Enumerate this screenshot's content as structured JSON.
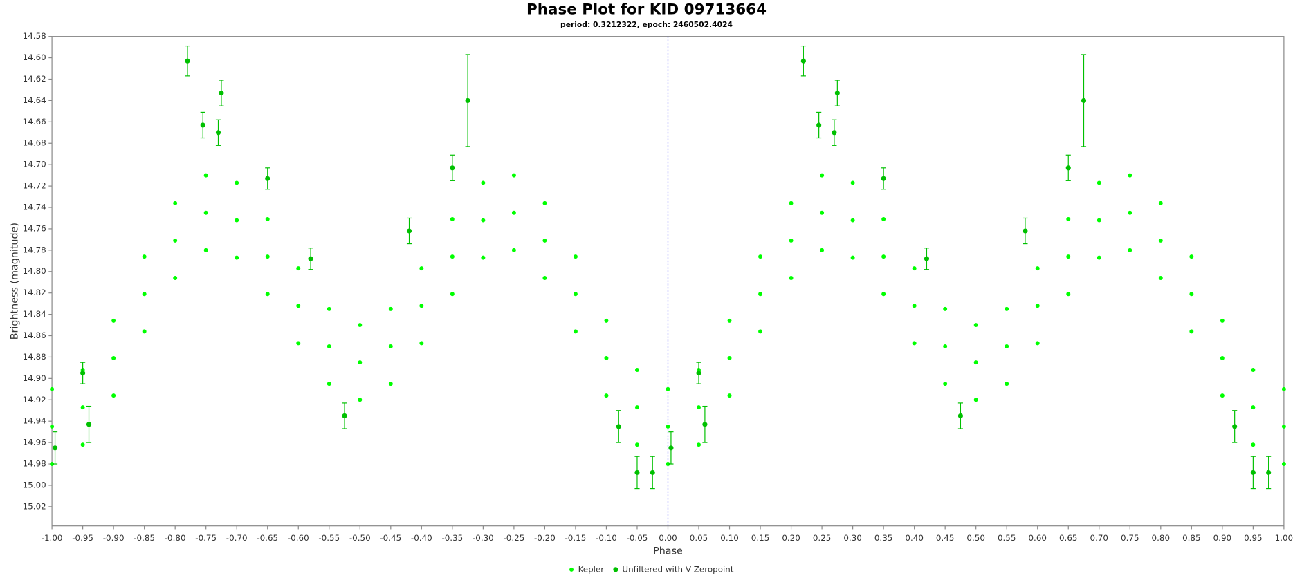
{
  "chart_data": {
    "type": "scatter",
    "title": "Phase Plot for KID 09713664",
    "subtitle": "period: 0.3212322, epoch: 2460502.4024",
    "x_label": "Phase",
    "y_label": "Brightness (magnitude)",
    "xlim": [
      -1,
      1
    ],
    "ylim": [
      14.58,
      15.038
    ],
    "y_inverted": true,
    "grid": false,
    "legend": "bottom",
    "reference_line": {
      "x": 0,
      "color": "#4444ff"
    },
    "xticks": [
      {
        "value": -1,
        "label": "-1.00"
      },
      {
        "value": -0.95,
        "label": "-0.95"
      },
      {
        "value": -0.9,
        "label": "-0.90"
      },
      {
        "value": -0.85,
        "label": "-0.85"
      },
      {
        "value": -0.8,
        "label": "-0.80"
      },
      {
        "value": -0.75,
        "label": "-0.75"
      },
      {
        "value": -0.7,
        "label": "-0.70"
      },
      {
        "value": -0.65,
        "label": "-0.65"
      },
      {
        "value": -0.6,
        "label": "-0.60"
      },
      {
        "value": -0.55,
        "label": "-0.55"
      },
      {
        "value": -0.5,
        "label": "-0.50"
      },
      {
        "value": -0.45,
        "label": "-0.45"
      },
      {
        "value": -0.4,
        "label": "-0.40"
      },
      {
        "value": -0.35,
        "label": "-0.35"
      },
      {
        "value": -0.3,
        "label": "-0.30"
      },
      {
        "value": -0.25,
        "label": "-0.25"
      },
      {
        "value": -0.2,
        "label": "-0.20"
      },
      {
        "value": -0.15,
        "label": "-0.15"
      },
      {
        "value": -0.1,
        "label": "-0.10"
      },
      {
        "value": -0.05,
        "label": "-0.05"
      },
      {
        "value": 0,
        "label": "0.00"
      },
      {
        "value": 0.05,
        "label": "0.05"
      },
      {
        "value": 0.1,
        "label": "0.10"
      },
      {
        "value": 0.15,
        "label": "0.15"
      },
      {
        "value": 0.2,
        "label": "0.20"
      },
      {
        "value": 0.25,
        "label": "0.25"
      },
      {
        "value": 0.3,
        "label": "0.30"
      },
      {
        "value": 0.35,
        "label": "0.35"
      },
      {
        "value": 0.4,
        "label": "0.40"
      },
      {
        "value": 0.45,
        "label": "0.45"
      },
      {
        "value": 0.5,
        "label": "0.50"
      },
      {
        "value": 0.55,
        "label": "0.55"
      },
      {
        "value": 0.6,
        "label": "0.60"
      },
      {
        "value": 0.65,
        "label": "0.65"
      },
      {
        "value": 0.7,
        "label": "0.70"
      },
      {
        "value": 0.75,
        "label": "0.75"
      },
      {
        "value": 0.8,
        "label": "0.80"
      },
      {
        "value": 0.85,
        "label": "0.85"
      },
      {
        "value": 0.9,
        "label": "0.90"
      },
      {
        "value": 0.95,
        "label": "0.95"
      },
      {
        "value": 1,
        "label": "1.00"
      }
    ],
    "yticks": [
      {
        "value": 14.58,
        "label": "14.58"
      },
      {
        "value": 14.6,
        "label": "14.60"
      },
      {
        "value": 14.62,
        "label": "14.62"
      },
      {
        "value": 14.64,
        "label": "14.64"
      },
      {
        "value": 14.66,
        "label": "14.66"
      },
      {
        "value": 14.68,
        "label": "14.68"
      },
      {
        "value": 14.7,
        "label": "14.70"
      },
      {
        "value": 14.72,
        "label": "14.72"
      },
      {
        "value": 14.74,
        "label": "14.74"
      },
      {
        "value": 14.76,
        "label": "14.76"
      },
      {
        "value": 14.78,
        "label": "14.78"
      },
      {
        "value": 14.8,
        "label": "14.80"
      },
      {
        "value": 14.82,
        "label": "14.82"
      },
      {
        "value": 14.84,
        "label": "14.84"
      },
      {
        "value": 14.86,
        "label": "14.86"
      },
      {
        "value": 14.88,
        "label": "14.88"
      },
      {
        "value": 14.9,
        "label": "14.90"
      },
      {
        "value": 14.92,
        "label": "14.92"
      },
      {
        "value": 14.94,
        "label": "14.94"
      },
      {
        "value": 14.96,
        "label": "14.96"
      },
      {
        "value": 14.98,
        "label": "14.98"
      },
      {
        "value": 15,
        "label": "15.00"
      },
      {
        "value": 15.02,
        "label": "15.02"
      }
    ],
    "series": [
      {
        "name": "Kepler",
        "color": "#00ff00",
        "x": [
          -1,
          -0.95,
          -0.9,
          -0.85,
          -0.8,
          -0.75,
          -0.7,
          -0.65,
          -0.6,
          -0.55,
          -0.5,
          -0.45,
          -0.4,
          -0.35,
          -0.3,
          -0.25,
          -0.2,
          -0.15,
          -0.1,
          -0.05,
          0,
          0.05,
          0.1,
          0.15,
          0.2,
          0.25,
          0.3,
          0.35,
          0.4,
          0.45,
          0.5,
          0.55,
          0.6,
          0.65,
          0.7,
          0.75,
          0.8,
          0.85,
          0.9,
          0.95,
          1,
          -1,
          -0.95,
          -0.9,
          -0.85,
          -0.8,
          -0.75,
          -0.7,
          -0.65,
          -0.6,
          -0.55,
          -0.5,
          -0.45,
          -0.4,
          -0.35,
          -0.3,
          -0.25,
          -0.2,
          -0.15,
          -0.1,
          -0.05,
          0,
          0.05,
          0.1,
          0.15,
          0.2,
          0.25,
          0.3,
          0.35,
          0.4,
          0.45,
          0.5,
          0.55,
          0.6,
          0.65,
          0.7,
          0.75,
          0.8,
          0.85,
          0.9,
          0.95,
          1,
          -1,
          -0.95,
          -0.9,
          -0.85,
          -0.8,
          -0.75,
          -0.7,
          -0.65,
          -0.6,
          -0.55,
          -0.5,
          -0.45,
          -0.4,
          -0.35,
          -0.3,
          -0.25,
          -0.2,
          -0.15,
          -0.1,
          -0.05,
          0,
          0.05,
          0.1,
          0.15,
          0.2,
          0.25,
          0.3,
          0.35,
          0.4,
          0.45,
          0.5,
          0.55,
          0.6,
          0.65,
          0.7,
          0.75,
          0.8,
          0.85,
          0.9,
          0.95,
          1
        ],
        "values": [
          14.945,
          14.927,
          14.881,
          14.821,
          14.771,
          14.745,
          14.752,
          14.786,
          14.832,
          14.87,
          14.885,
          14.87,
          14.832,
          14.786,
          14.752,
          14.745,
          14.771,
          14.821,
          14.881,
          14.927,
          14.945,
          14.927,
          14.881,
          14.821,
          14.771,
          14.745,
          14.752,
          14.786,
          14.832,
          14.87,
          14.885,
          14.87,
          14.832,
          14.786,
          14.752,
          14.745,
          14.771,
          14.821,
          14.881,
          14.927,
          14.945,
          14.91,
          14.892,
          14.846,
          14.786,
          14.736,
          14.71,
          14.717,
          14.751,
          14.797,
          14.835,
          14.85,
          14.835,
          14.797,
          14.751,
          14.717,
          14.71,
          14.736,
          14.786,
          14.846,
          14.892,
          14.91,
          14.892,
          14.846,
          14.786,
          14.736,
          14.71,
          14.717,
          14.751,
          14.797,
          14.835,
          14.85,
          14.835,
          14.797,
          14.751,
          14.717,
          14.71,
          14.736,
          14.786,
          14.846,
          14.892,
          14.91,
          14.98,
          14.962,
          14.916,
          14.856,
          14.806,
          14.78,
          14.787,
          14.821,
          14.867,
          14.905,
          14.92,
          14.905,
          14.867,
          14.821,
          14.787,
          14.78,
          14.806,
          14.856,
          14.916,
          14.962,
          14.98,
          14.962,
          14.916,
          14.856,
          14.806,
          14.78,
          14.787,
          14.821,
          14.867,
          14.905,
          14.92,
          14.905,
          14.867,
          14.821,
          14.787,
          14.78,
          14.806,
          14.856,
          14.916,
          14.962,
          14.98
        ]
      },
      {
        "name": "Unfiltered with V Zeropoint",
        "color": "#00c000",
        "x": [
          -0.78,
          -0.755,
          -0.725,
          -0.73,
          -0.65,
          -0.325,
          -0.35,
          -0.42,
          -0.525,
          -0.94,
          -0.995,
          -0.05,
          -0.025,
          -0.08,
          -0.58,
          -0.95,
          0.22,
          0.245,
          0.275,
          0.27,
          0.35,
          0.675,
          0.65,
          0.58,
          0.475,
          0.06,
          0.005,
          0.95,
          0.975,
          0.92,
          0.42,
          0.05
        ],
        "values": [
          14.603,
          14.663,
          14.633,
          14.67,
          14.713,
          14.64,
          14.703,
          14.762,
          14.935,
          14.943,
          14.965,
          14.988,
          14.988,
          14.945,
          14.788,
          14.895,
          14.603,
          14.663,
          14.633,
          14.67,
          14.713,
          14.64,
          14.703,
          14.762,
          14.935,
          14.943,
          14.965,
          14.988,
          14.988,
          14.945,
          14.788,
          14.895
        ],
        "errors": [
          0.014,
          0.012,
          0.012,
          0.012,
          0.01,
          0.043,
          0.012,
          0.012,
          0.012,
          0.017,
          0.015,
          0.015,
          0.015,
          0.015,
          0.01,
          0.01,
          0.014,
          0.012,
          0.012,
          0.012,
          0.01,
          0.043,
          0.012,
          0.012,
          0.012,
          0.017,
          0.015,
          0.015,
          0.015,
          0.015,
          0.01,
          0.01
        ]
      }
    ]
  }
}
